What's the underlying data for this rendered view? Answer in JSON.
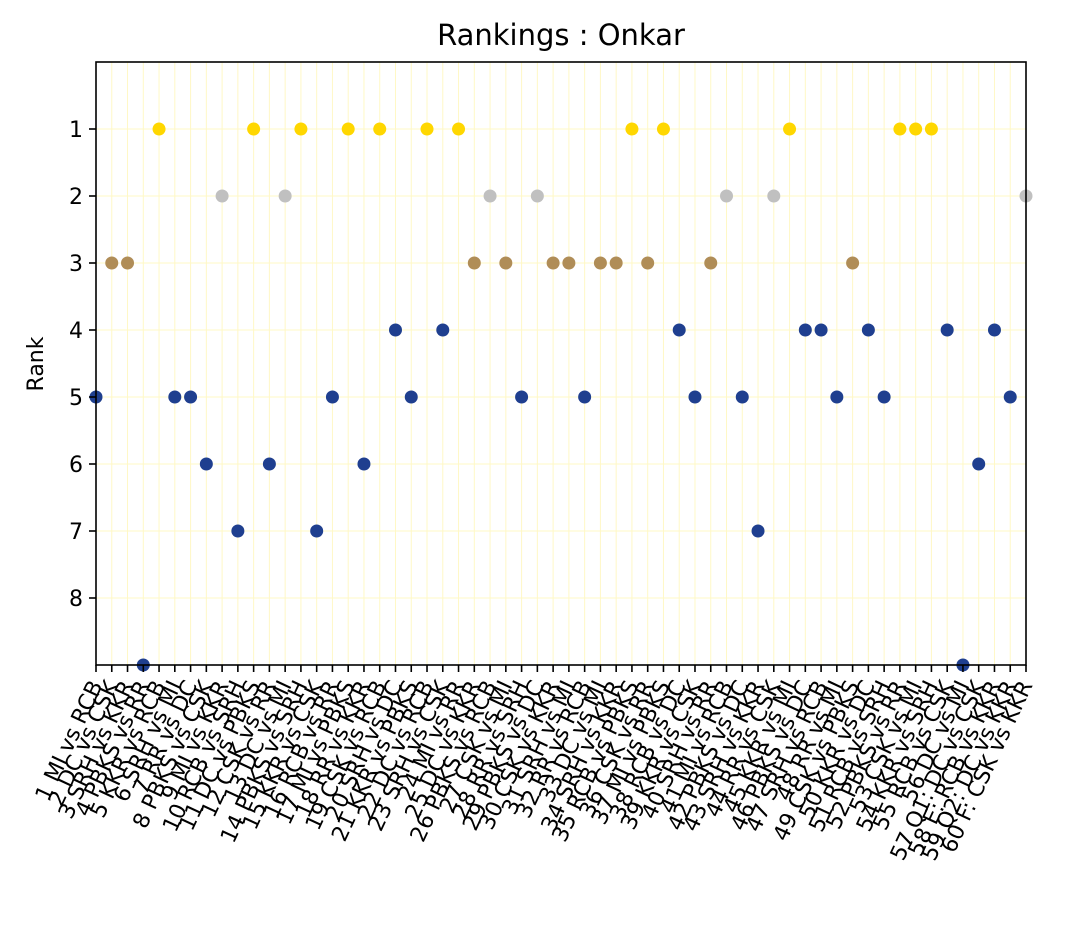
{
  "chart_data": {
    "type": "scatter",
    "title": "Rankings : Onkar",
    "xlabel": "",
    "ylabel": "Rank",
    "y_inverted": true,
    "ylim": [
      9,
      0
    ],
    "yticks": [
      1,
      2,
      3,
      4,
      5,
      6,
      7,
      8
    ],
    "grid": true,
    "grid_color": "#fff8c6",
    "rank_colors": {
      "1": "#ffd700",
      "2": "#c0c0c0",
      "3": "#b08d57",
      "other": "#1f3f8f"
    },
    "categories": [
      "1 MI vs RCB",
      "2 DC vs CSK",
      "3 SRH vs KKR",
      "4 PBKS vs RR",
      "5 KKR vs RCB",
      "6 SRH vs MI",
      "7 RR vs DC",
      "8 PBKS vs CSK",
      "9 MI vs KKR",
      "10 RCB vs SRH",
      "11 DC vs PBKS",
      "12 CSK vs RR",
      "13 DC vs MI",
      "14 PBKS vs SRH",
      "15 KKR vs CSK",
      "16 RCB vs RR",
      "17 MI vs PBKS",
      "18 RR vs KKR",
      "19 CSK vs RCB",
      "20 SRH vs DC",
      "21 KKR vs PBKS",
      "22 DC vs RCB",
      "23 SRH vs CSK",
      "24 MI vs RR",
      "25 DC vs KKR",
      "26 PBKS vs RCB",
      "27 CSK vs MI",
      "28 RR vs SRH",
      "29 PBKS vs DC",
      "30 CSK vs KKR",
      "31 SRH vs MI",
      "32 RR vs RCB",
      "33 DC vs MI",
      "34 SRH vs KKR",
      "35 RCB vs PBKS",
      "36 CSK vs RR",
      "37 MI vs PBKS",
      "38 RCB vs DC",
      "39 KKR vs CSK",
      "40 SRH vs RR",
      "41 MI vs RCB",
      "42 PBKS vs DC",
      "43 SRH vs KKR",
      "44 RR vs CSK",
      "45 KKR vs MI",
      "46 PBKS vs DC",
      "47 SRH vs RCB",
      "48 RR vs MI",
      "49 CSK vs PBKS",
      "50 KKR vs DC",
      "51 RCB vs SRH",
      "52 PBKS vs RR",
      "53 CSK vs MI",
      "54 KKR vs SRH",
      "55 RCB vs CSK",
      "56 DC vs MI",
      "57 Q1: DC vs CSK",
      "58 E: RCB vs KKR",
      "59 Q2: DC vs KKR",
      "60 F: CSK vs KKR"
    ],
    "values": [
      5,
      3,
      3,
      9,
      1,
      5,
      5,
      6,
      2,
      7,
      1,
      6,
      2,
      1,
      7,
      5,
      1,
      6,
      1,
      4,
      5,
      1,
      4,
      1,
      3,
      2,
      3,
      5,
      2,
      3,
      3,
      5,
      3,
      3,
      1,
      3,
      1,
      4,
      5,
      3,
      2,
      5,
      7,
      2,
      1,
      4,
      4,
      5,
      3,
      4,
      5,
      1,
      1,
      1,
      4,
      9,
      6,
      4,
      5,
      2
    ]
  }
}
